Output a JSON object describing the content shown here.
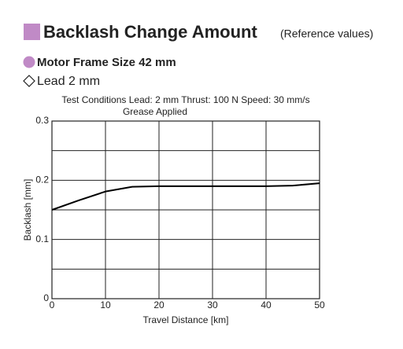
{
  "header": {
    "title": "Backlash Change Amount",
    "title_note": "(Reference values)",
    "motor": "Motor Frame Size 42 mm",
    "lead": "Lead 2 mm"
  },
  "chart_data": {
    "type": "line",
    "subtitle": [
      "Test Conditions  Lead: 2 mm  Thrust: 100 N  Speed: 30 mm/s",
      "Grease Applied"
    ],
    "x_label": "Travel Distance [km]",
    "y_label": "Backlash [mm]",
    "x": [
      0,
      5,
      10,
      15,
      20,
      25,
      30,
      35,
      40,
      45,
      50
    ],
    "values": [
      0.15,
      0.166,
      0.181,
      0.189,
      0.19,
      0.19,
      0.19,
      0.19,
      0.19,
      0.191,
      0.195
    ],
    "color": "#000000",
    "xlim": [
      0,
      50
    ],
    "xticks": [
      0,
      10,
      20,
      30,
      40,
      50
    ],
    "ylim": [
      0,
      0.3
    ],
    "yticks": [
      0,
      0.1,
      0.2,
      0.3
    ],
    "y_minor_grid": [
      0.05,
      0.15,
      0.25
    ],
    "grid": true
  }
}
